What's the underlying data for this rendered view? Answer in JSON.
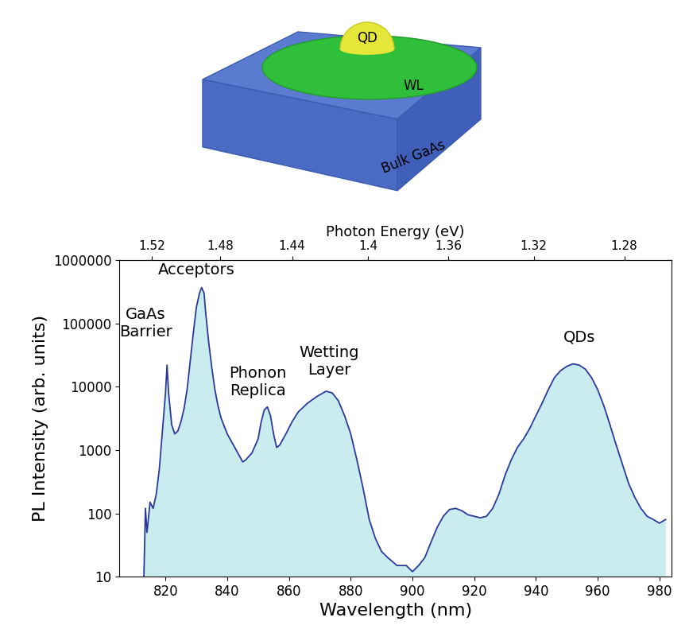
{
  "chart_data": {
    "type": "line",
    "x_label": "Wavelength (nm)",
    "y_label": "PL Intensity (arb. units)",
    "x2_label": "Photon Energy (eV)",
    "x2ticks": [
      1.52,
      1.48,
      1.44,
      1.4,
      1.36,
      1.32,
      1.28
    ],
    "xlim": [
      805,
      984
    ],
    "xticks": [
      820,
      840,
      860,
      880,
      900,
      920,
      940,
      960,
      980
    ],
    "ylim": [
      10,
      1000000
    ],
    "yticks": [
      10,
      100,
      1000,
      10000,
      100000,
      1000000
    ],
    "log": "y",
    "color": "#2b3a9a",
    "x": [
      813,
      813.5,
      814,
      815,
      816,
      817,
      818,
      819,
      820,
      820.5,
      821,
      822,
      823,
      824,
      825,
      826,
      827,
      828,
      829,
      830,
      831,
      831.7,
      832.5,
      833,
      834,
      835,
      836,
      837,
      838,
      840,
      842,
      844,
      845,
      846,
      848,
      850,
      851,
      852,
      853,
      854,
      855,
      856,
      857,
      859,
      861,
      863,
      866,
      869,
      872,
      874,
      876,
      878,
      880,
      882,
      884,
      886,
      888,
      890,
      892,
      895,
      898,
      900,
      902,
      904,
      906,
      908,
      910,
      912,
      914,
      916,
      918,
      920,
      922,
      924,
      926,
      928,
      930,
      932,
      934,
      936,
      938,
      940,
      942,
      944,
      946,
      948,
      950,
      952,
      954,
      956,
      958,
      960,
      962,
      964,
      966,
      968,
      970,
      972,
      974,
      976,
      978,
      980,
      982
    ],
    "values": [
      10,
      120,
      50,
      150,
      120,
      200,
      500,
      2000,
      8000,
      22000,
      8000,
      2500,
      1800,
      2000,
      2800,
      4500,
      9000,
      25000,
      70000,
      180000,
      300000,
      370000,
      300000,
      150000,
      50000,
      20000,
      9000,
      5000,
      3200,
      1800,
      1200,
      800,
      650,
      700,
      900,
      1500,
      2800,
      4300,
      4800,
      3500,
      1800,
      1100,
      1200,
      1800,
      2800,
      4000,
      5500,
      7000,
      8500,
      8000,
      6000,
      3500,
      1800,
      700,
      250,
      80,
      40,
      25,
      20,
      15,
      15,
      12,
      15,
      20,
      35,
      60,
      90,
      115,
      120,
      110,
      95,
      90,
      85,
      90,
      120,
      200,
      400,
      700,
      1100,
      1500,
      2200,
      3500,
      5500,
      9000,
      14000,
      18000,
      21000,
      23000,
      22000,
      19000,
      14000,
      9000,
      5000,
      2500,
      1200,
      600,
      300,
      180,
      120,
      90,
      80,
      70,
      80
    ],
    "annotations": [
      {
        "text": "GaAs\nBarrier",
        "x": 813.5,
        "y": 100000
      },
      {
        "text": "Acceptors",
        "x": 830,
        "y": 700000
      },
      {
        "text": "Phonon\nReplica",
        "x": 850,
        "y": 12000
      },
      {
        "text": "Wetting\nLayer",
        "x": 873,
        "y": 25000
      },
      {
        "text": "QDs",
        "x": 954,
        "y": 60000
      }
    ]
  },
  "schematic": {
    "dot": "QD",
    "wetting_layer": "WL",
    "substrate": "Bulk GaAs"
  }
}
